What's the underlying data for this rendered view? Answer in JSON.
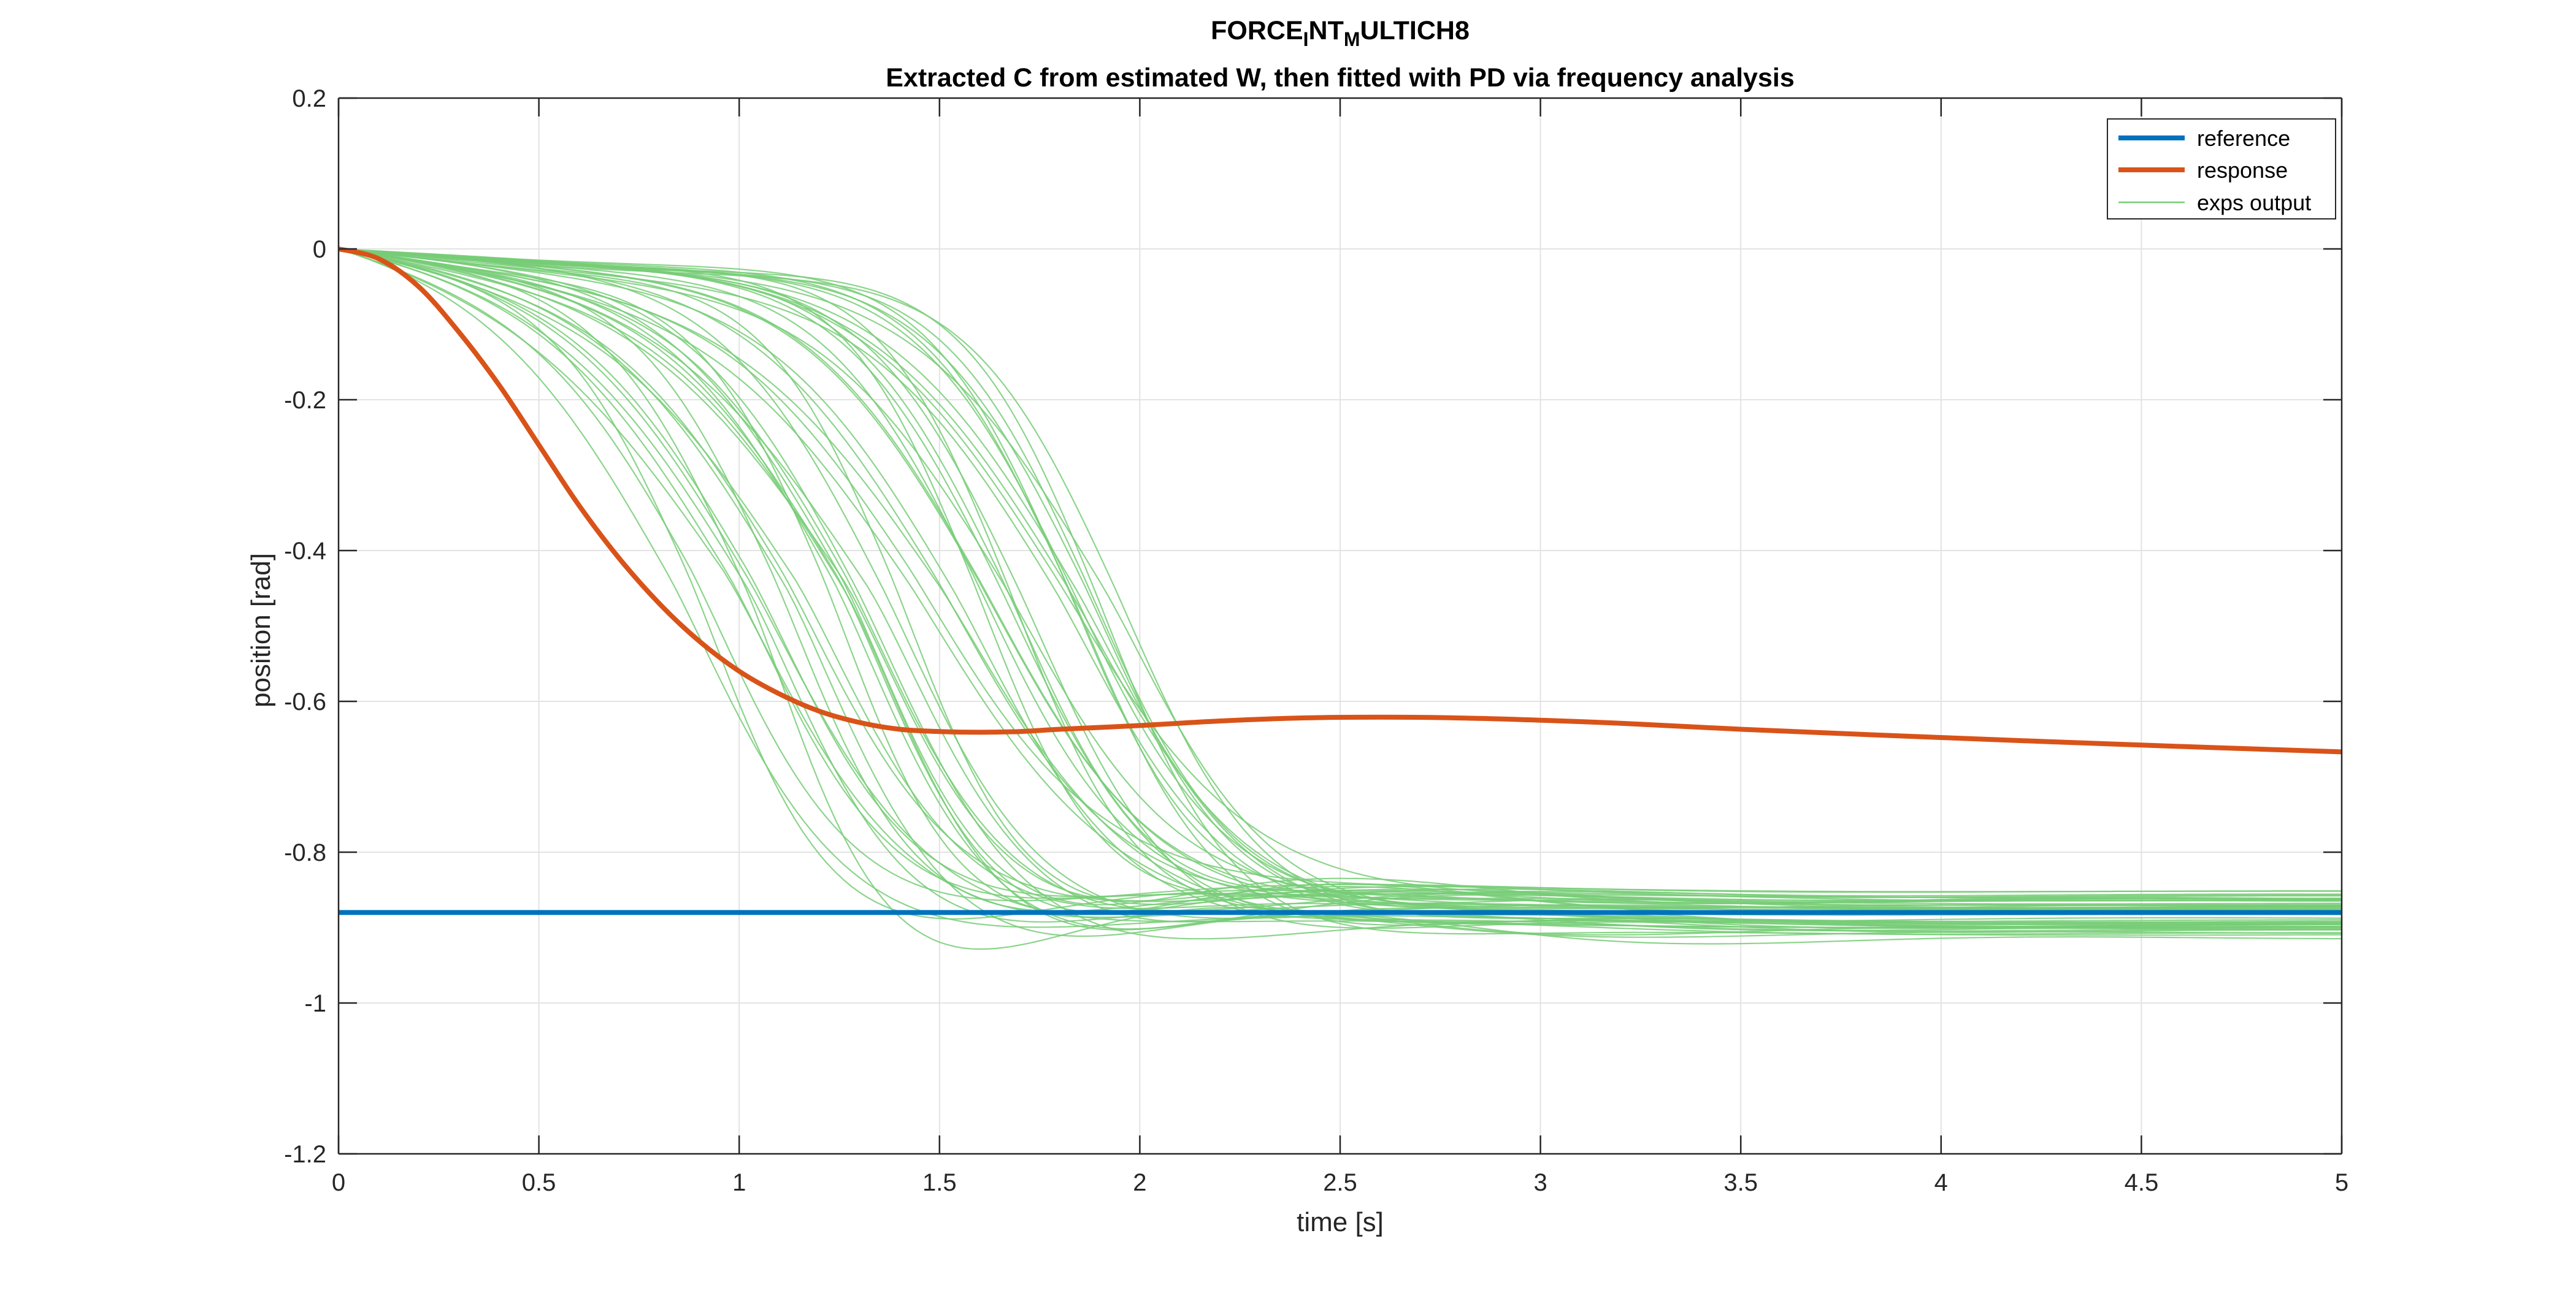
{
  "chart_data": {
    "type": "line",
    "title": {
      "parts": [
        "FORCE",
        "I",
        "NT",
        "M",
        "ULTICH8"
      ],
      "subscripts": [
        false,
        true,
        false,
        true,
        false
      ]
    },
    "subtitle": "Extracted C from estimated W, then fitted with PD via frequency analysis",
    "xlabel": "time [s]",
    "ylabel": "position [rad]",
    "xlim": [
      0,
      5
    ],
    "ylim": [
      -1.2,
      0.2
    ],
    "x_ticks": [
      0,
      0.5,
      1,
      1.5,
      2,
      2.5,
      3,
      3.5,
      4,
      4.5,
      5
    ],
    "x_tick_labels": [
      "0",
      "0.5",
      "1",
      "1.5",
      "2",
      "2.5",
      "3",
      "3.5",
      "4",
      "4.5",
      "5"
    ],
    "y_ticks": [
      0.2,
      0,
      -0.2,
      -0.4,
      -0.6,
      -0.8,
      -1,
      -1.2
    ],
    "y_tick_labels": [
      "0.2",
      "0",
      "-0.2",
      "-0.4",
      "-0.6",
      "-0.8",
      "-1",
      "-1.2"
    ],
    "grid": true,
    "legend_position": "top-right",
    "colors": {
      "reference": "#0072BD",
      "response": "#D95319",
      "exps": "#77CC77"
    },
    "series": [
      {
        "name": "reference",
        "x": [
          0,
          5
        ],
        "y": [
          -0.88,
          -0.88
        ]
      },
      {
        "name": "response",
        "x": [
          0,
          0.1,
          0.2,
          0.3,
          0.4,
          0.5,
          0.6,
          0.7,
          0.8,
          0.9,
          1.0,
          1.1,
          1.2,
          1.3,
          1.4,
          1.5,
          1.6,
          1.7,
          1.8,
          2.0,
          2.2,
          2.4,
          2.6,
          2.8,
          3.0,
          3.2,
          3.5,
          4.0,
          4.5,
          5.0
        ],
        "y": [
          0,
          -0.013,
          -0.05,
          -0.11,
          -0.18,
          -0.26,
          -0.34,
          -0.41,
          -0.47,
          -0.52,
          -0.56,
          -0.59,
          -0.613,
          -0.628,
          -0.637,
          -0.64,
          -0.641,
          -0.64,
          -0.637,
          -0.632,
          -0.626,
          -0.622,
          -0.621,
          -0.622,
          -0.625,
          -0.629,
          -0.637,
          -0.648,
          -0.658,
          -0.667
        ]
      },
      {
        "name": "exps output",
        "count": 50,
        "x_range": [
          0,
          5
        ],
        "final_range": [
          -0.915,
          -0.85
        ],
        "midpoint_time_range": [
          0.8,
          1.95
        ],
        "min_position": -1.03
      }
    ]
  }
}
